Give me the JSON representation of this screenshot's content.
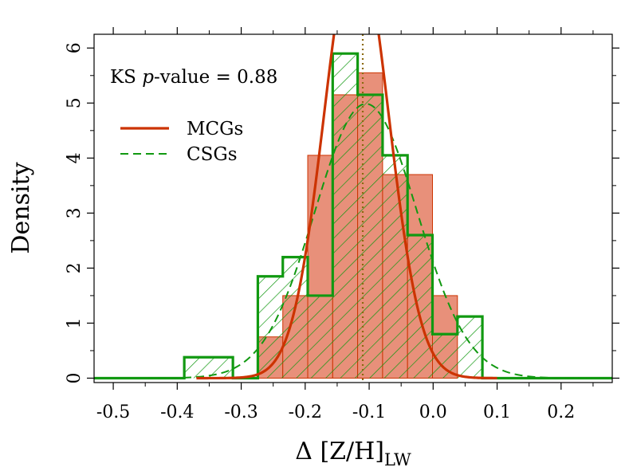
{
  "chart_data": {
    "type": "histogram",
    "title": "",
    "xlabel": "Δ [Z/H]",
    "xlabel_subscript": "LW",
    "ylabel": "Density",
    "xlim": [
      -0.53,
      0.28
    ],
    "ylim": [
      -0.08,
      6.25
    ],
    "x_ticks": [
      -0.5,
      -0.4,
      -0.3,
      -0.2,
      -0.1,
      0.0,
      0.1,
      0.2
    ],
    "x_tick_labels": [
      "-0.5",
      "-0.4",
      "-0.3",
      "-0.2",
      "-0.1",
      "0.0",
      "0.1",
      "0.2"
    ],
    "y_ticks": [
      0,
      1,
      2,
      3,
      4,
      5,
      6
    ],
    "y_tick_labels": [
      "0",
      "1",
      "2",
      "3",
      "4",
      "5",
      "6"
    ],
    "annotation": {
      "prefix": "KS ",
      "variable": "p",
      "suffix": "-value = 0.88"
    },
    "median_line_x": -0.11,
    "series": [
      {
        "name": "MCGs",
        "color": "#cc3300",
        "fill": "#e8907a",
        "style": "solid",
        "bin_edges": [
          -0.274,
          -0.235,
          -0.196,
          -0.157,
          -0.118,
          -0.079,
          -0.04,
          -0.001,
          0.038
        ],
        "densities": [
          0.75,
          1.5,
          4.05,
          5.15,
          5.55,
          3.7,
          3.7,
          1.5
        ],
        "density_curve": {
          "mean": -0.12,
          "sd": 0.05,
          "x_range": [
            -0.37,
            0.1
          ]
        }
      },
      {
        "name": "CSGs",
        "color": "#119911",
        "fill": "hatched",
        "style": "dashed",
        "bin_edges": [
          -0.389,
          -0.313,
          -0.274,
          -0.235,
          -0.196,
          -0.157,
          -0.118,
          -0.079,
          -0.04,
          -0.001,
          0.038,
          0.077
        ],
        "densities": [
          0.38,
          0,
          1.85,
          2.2,
          1.5,
          5.9,
          5.15,
          4.05,
          2.6,
          0.8,
          1.12
        ],
        "density_curve": {
          "mean": -0.105,
          "sd": 0.08,
          "x_range": [
            -0.53,
            0.28
          ]
        }
      }
    ]
  }
}
